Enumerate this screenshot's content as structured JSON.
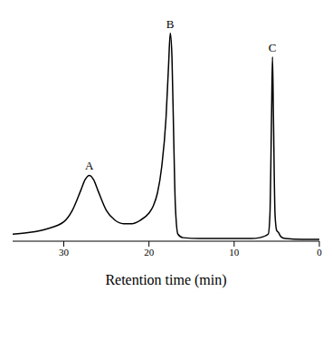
{
  "chart_data": {
    "type": "line",
    "xlabel": "Retention time (min)",
    "x": [
      36,
      34,
      32,
      30,
      29,
      28,
      27.5,
      27,
      26.5,
      26,
      25,
      24,
      23,
      22,
      21,
      20,
      19.5,
      19,
      18.5,
      18,
      17.7,
      17.5,
      17.3,
      17.1,
      16.9,
      16.6,
      16,
      14,
      12,
      10,
      8,
      7,
      6,
      5.8,
      5.6,
      5.5,
      5.4,
      5.2,
      5,
      4.8,
      4.5,
      4,
      2,
      0
    ],
    "values": [
      8,
      10,
      14,
      22,
      35,
      58,
      70,
      75,
      70,
      58,
      35,
      24,
      20,
      20,
      24,
      32,
      40,
      55,
      85,
      140,
      200,
      237,
      210,
      120,
      40,
      8,
      4,
      3,
      3,
      3,
      3,
      4,
      8,
      30,
      150,
      210,
      150,
      30,
      12,
      10,
      5,
      3,
      2,
      2
    ],
    "color": "#000000",
    "xlim": [
      36,
      0
    ],
    "xticks": [
      30,
      20,
      10,
      0
    ],
    "ylim": [
      0,
      250
    ],
    "tick_labels": "x",
    "grid": false,
    "annotations": [
      {
        "text": "A",
        "x": 27,
        "y": 75
      },
      {
        "text": "B",
        "x": 17.5,
        "y": 237
      },
      {
        "text": "C",
        "x": 5.5,
        "y": 210
      }
    ]
  }
}
